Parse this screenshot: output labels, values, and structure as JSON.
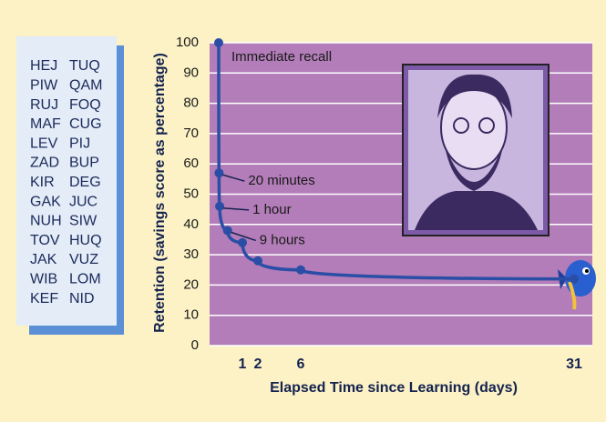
{
  "word_list": [
    [
      "HEJ",
      "TUQ"
    ],
    [
      "PIW",
      "QAM"
    ],
    [
      "RUJ",
      "FOQ"
    ],
    [
      "MAF",
      "CUG"
    ],
    [
      "LEV",
      "PIJ"
    ],
    [
      "ZAD",
      "BUP"
    ],
    [
      "KIR",
      "DEG"
    ],
    [
      "GAK",
      "JUC"
    ],
    [
      "NUH",
      "SIW"
    ],
    [
      "TOV",
      "HUQ"
    ],
    [
      "JAK",
      "VUZ"
    ],
    [
      "WIB",
      "LOM"
    ],
    [
      "KEF",
      "NID"
    ]
  ],
  "chart_data": {
    "type": "line",
    "x_label": "Elapsed Time since Learning (days)",
    "y_label": "Retention (savings score as percentage)",
    "x": [
      0,
      0.0139,
      0.0417,
      0.375,
      1,
      2,
      6,
      31
    ],
    "series": [
      {
        "color": "#2a4ea6",
        "values": [
          100,
          57,
          46,
          38,
          34,
          28,
          25,
          22
        ]
      }
    ],
    "annotations": [
      "Immediate recall",
      "20 minutes",
      "1 hour",
      "9 hours"
    ],
    "xlim": [
      0,
      31
    ],
    "xticks": [
      1,
      2,
      6,
      31
    ],
    "ylim": [
      0,
      100
    ],
    "yticks": [
      0,
      10,
      20,
      30,
      40,
      50,
      60,
      70,
      80,
      90,
      100
    ],
    "grid": true,
    "plot_background": "#b27db8"
  }
}
